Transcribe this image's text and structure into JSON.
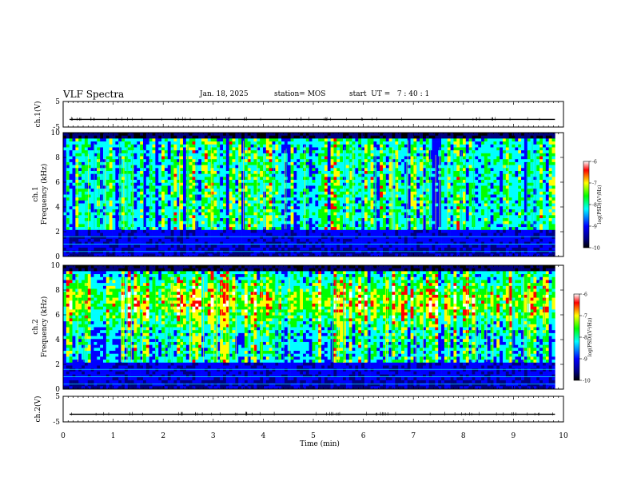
{
  "header": {
    "title": "VLF Spectra",
    "date": "Jan. 18, 2025",
    "station": "station= MOS",
    "start": "start  UT =   7 : 40 : 1"
  },
  "chart_data": [
    {
      "type": "line",
      "panel": "ch1-voltage",
      "ylabel": "ch.1(V)",
      "ylim": [
        -5,
        5
      ],
      "y_ticks": [
        5,
        -5
      ],
      "series": [
        {
          "approx_level": -2
        }
      ]
    },
    {
      "type": "heatmap",
      "panel": "ch1-spectrogram",
      "ylabel_channel": "ch.1",
      "ylabel": "Frequency  (kHz)",
      "ylim": [
        0,
        10
      ],
      "y_ticks": [
        0,
        2,
        4,
        6,
        8,
        10
      ],
      "colorbar": {
        "label": "log(PSD)(V²/Hz)",
        "range": [
          -10,
          -6
        ],
        "ticks": [
          -6,
          -7,
          -8,
          -9,
          -10
        ]
      }
    },
    {
      "type": "heatmap",
      "panel": "ch2-spectrogram",
      "ylabel_channel": "ch.2",
      "ylabel": "Frequency  (kHz)",
      "ylim": [
        0,
        10
      ],
      "y_ticks": [
        0,
        2,
        4,
        6,
        8,
        10
      ],
      "colorbar": {
        "label": "log(PSD)(V²/Hz)",
        "range": [
          -10,
          -6
        ],
        "ticks": [
          -6,
          -7,
          -8,
          -9,
          -10
        ]
      }
    },
    {
      "type": "line",
      "panel": "ch2-voltage",
      "ylabel": "ch.2(V)",
      "ylim": [
        -5,
        5
      ],
      "y_ticks": [
        5,
        -5
      ],
      "series": [
        {
          "approx_level": -2
        }
      ]
    }
  ],
  "x_axis": {
    "label": "Time  (min)",
    "xlim": [
      0,
      10
    ],
    "ticks": [
      0,
      1,
      2,
      3,
      4,
      5,
      6,
      7,
      8,
      9,
      10
    ],
    "data_end": 9.83
  },
  "colormap": [
    "#000000",
    "#00007f",
    "#0000ff",
    "#00ffff",
    "#00ff00",
    "#ffff00",
    "#ff0000",
    "#ffffff"
  ]
}
